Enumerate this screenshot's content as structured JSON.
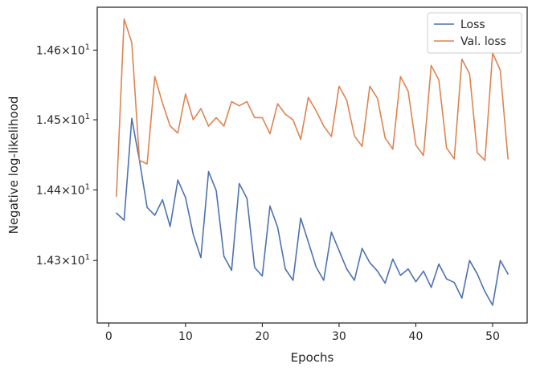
{
  "chart_data": {
    "type": "line",
    "xlabel": "Epochs",
    "ylabel": "Negative log-likelihood",
    "yscale": "log",
    "xlim": [
      -1.5,
      54.5
    ],
    "ylim": [
      14.212,
      14.662
    ],
    "x_ticks": [
      0,
      10,
      20,
      30,
      40,
      50
    ],
    "y_ticks": [
      {
        "value": 14.3,
        "mantissa": "1.43",
        "base": "10",
        "exp": "1"
      },
      {
        "value": 14.4,
        "mantissa": "1.44",
        "base": "10",
        "exp": "1"
      },
      {
        "value": 14.5,
        "mantissa": "1.45",
        "base": "10",
        "exp": "1"
      },
      {
        "value": 14.6,
        "mantissa": "1.46",
        "base": "10",
        "exp": "1"
      }
    ],
    "times_sign": "×",
    "grid": false,
    "legend_position": "top-right",
    "x": [
      1,
      2,
      3,
      4,
      5,
      6,
      7,
      8,
      9,
      10,
      11,
      12,
      13,
      14,
      15,
      16,
      17,
      18,
      19,
      20,
      21,
      22,
      23,
      24,
      25,
      26,
      27,
      28,
      29,
      30,
      31,
      32,
      33,
      34,
      35,
      36,
      37,
      38,
      39,
      40,
      41,
      42,
      43,
      44,
      45,
      46,
      47,
      48,
      49,
      50,
      51,
      52
    ],
    "series": [
      {
        "name": "Loss",
        "color": "#4c72b0",
        "values": [
          14.367,
          14.357,
          14.502,
          14.442,
          14.375,
          14.364,
          14.386,
          14.348,
          14.414,
          14.389,
          14.337,
          14.304,
          14.426,
          14.399,
          14.306,
          14.286,
          14.409,
          14.388,
          14.29,
          14.278,
          14.377,
          14.347,
          14.288,
          14.272,
          14.36,
          14.326,
          14.291,
          14.272,
          14.34,
          14.314,
          14.288,
          14.272,
          14.317,
          14.297,
          14.285,
          14.268,
          14.302,
          14.279,
          14.288,
          14.27,
          14.285,
          14.262,
          14.295,
          14.274,
          14.269,
          14.247,
          14.3,
          14.281,
          14.256,
          14.237,
          14.3,
          14.281
        ]
      },
      {
        "name": "Val. loss",
        "color": "#dd8452",
        "values": [
          14.391,
          14.645,
          14.611,
          14.442,
          14.437,
          14.562,
          14.524,
          14.491,
          14.481,
          14.537,
          14.5,
          14.516,
          14.491,
          14.503,
          14.491,
          14.526,
          14.52,
          14.526,
          14.503,
          14.503,
          14.48,
          14.523,
          14.508,
          14.5,
          14.472,
          14.532,
          14.513,
          14.491,
          14.476,
          14.548,
          14.528,
          14.477,
          14.462,
          14.548,
          14.531,
          14.474,
          14.458,
          14.562,
          14.541,
          14.464,
          14.449,
          14.578,
          14.557,
          14.46,
          14.444,
          14.587,
          14.566,
          14.453,
          14.442,
          14.596,
          14.571,
          14.444
        ]
      }
    ]
  }
}
